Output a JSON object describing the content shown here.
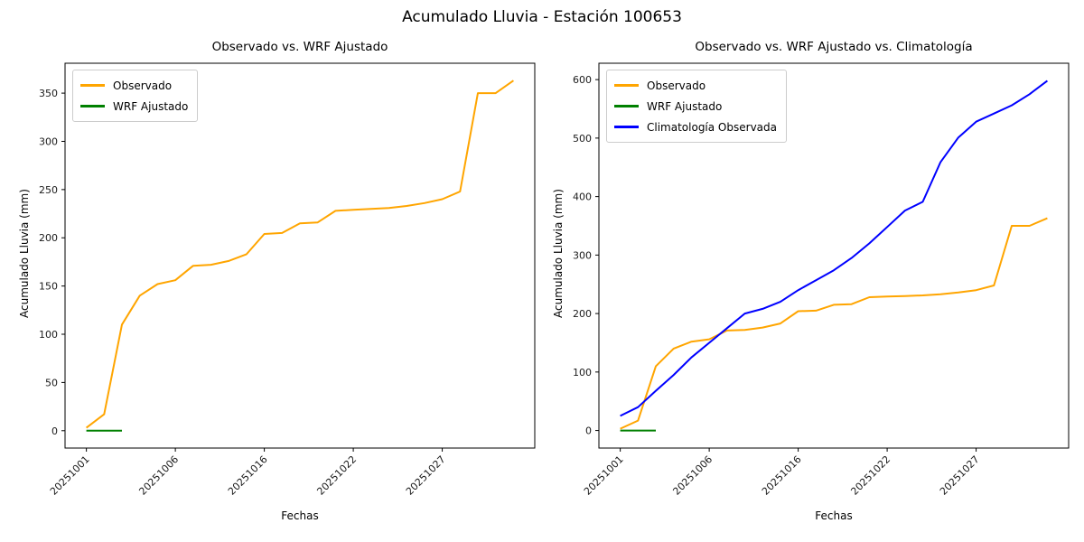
{
  "figure": {
    "title": "Acumulado Lluvia - Estación 100653"
  },
  "chart_data": [
    {
      "type": "line",
      "title": "Observado vs. WRF Ajustado",
      "xlabel": "Fechas",
      "ylabel": "Acumulado Lluvia (mm)",
      "x_tick_positions": [
        0,
        5,
        10,
        15,
        20
      ],
      "x_tick_labels": [
        "20251001",
        "20251006",
        "20251016",
        "20251022",
        "20251027"
      ],
      "y_ticks": [
        0,
        50,
        100,
        150,
        200,
        250,
        300,
        350
      ],
      "xlim": [
        -1.2,
        25.2
      ],
      "ylim": [
        -18,
        381
      ],
      "grid": false,
      "legend_position": "upper-left",
      "series": [
        {
          "name": "Observado",
          "color": "#FFA500",
          "x": [
            0,
            1,
            2,
            3,
            4,
            5,
            6,
            7,
            8,
            9,
            10,
            11,
            12,
            13,
            14,
            15,
            16,
            17,
            18,
            19,
            20,
            21,
            22,
            23,
            24
          ],
          "values": [
            3,
            17,
            110,
            140,
            152,
            156,
            171,
            172,
            176,
            183,
            204,
            205,
            215,
            216,
            228,
            229,
            230,
            231,
            233,
            236,
            240,
            248,
            350,
            350,
            363
          ]
        },
        {
          "name": "WRF Ajustado",
          "color": "#008000",
          "x": [
            0,
            1,
            2
          ],
          "values": [
            0,
            0,
            0
          ]
        }
      ]
    },
    {
      "type": "line",
      "title": "Observado vs. WRF Ajustado vs. Climatología",
      "xlabel": "Fechas",
      "ylabel": "Acumulado Lluvia (mm)",
      "x_tick_positions": [
        0,
        5,
        10,
        15,
        20
      ],
      "x_tick_labels": [
        "20251001",
        "20251006",
        "20251016",
        "20251022",
        "20251027"
      ],
      "y_ticks": [
        0,
        100,
        200,
        300,
        400,
        500,
        600
      ],
      "xlim": [
        -1.2,
        25.2
      ],
      "ylim": [
        -30,
        628
      ],
      "grid": false,
      "legend_position": "upper-left",
      "series": [
        {
          "name": "Observado",
          "color": "#FFA500",
          "x": [
            0,
            1,
            2,
            3,
            4,
            5,
            6,
            7,
            8,
            9,
            10,
            11,
            12,
            13,
            14,
            15,
            16,
            17,
            18,
            19,
            20,
            21,
            22,
            23,
            24
          ],
          "values": [
            3,
            17,
            110,
            140,
            152,
            156,
            171,
            172,
            176,
            183,
            204,
            205,
            215,
            216,
            228,
            229,
            230,
            231,
            233,
            236,
            240,
            248,
            350,
            350,
            363
          ]
        },
        {
          "name": "WRF Ajustado",
          "color": "#008000",
          "x": [
            0,
            1,
            2
          ],
          "values": [
            0,
            0,
            0
          ]
        },
        {
          "name": "Climatología Observada",
          "color": "#0000FF",
          "x": [
            0,
            1,
            2,
            3,
            4,
            5,
            6,
            7,
            8,
            9,
            10,
            11,
            12,
            13,
            14,
            15,
            16,
            17,
            18,
            19,
            20,
            21,
            22,
            23,
            24
          ],
          "values": [
            25,
            40,
            68,
            95,
            125,
            150,
            175,
            200,
            208,
            220,
            240,
            257,
            274,
            295,
            320,
            348,
            376,
            391,
            459,
            501,
            528,
            542,
            556,
            575,
            598
          ]
        }
      ]
    }
  ]
}
